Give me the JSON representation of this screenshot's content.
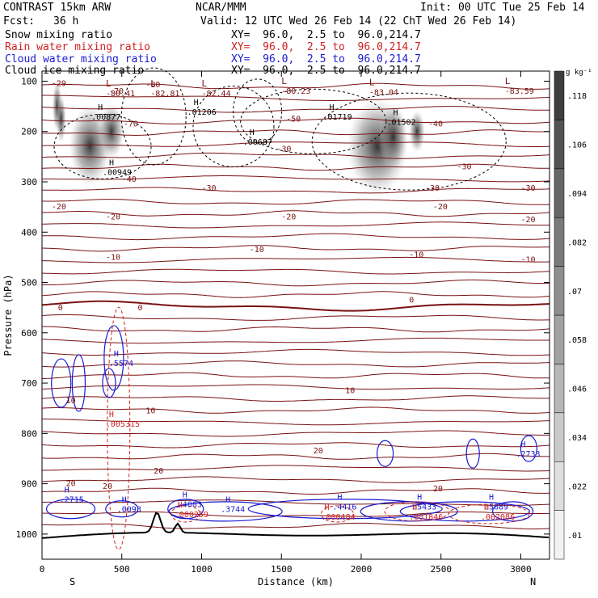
{
  "header": {
    "model": "CONTRAST 15km ARW",
    "center": "NCAR/MMM",
    "init": "Init: 00 UTC Tue 25 Feb 14",
    "fcst_label": "Fcst:",
    "fcst_value": "36 h",
    "valid": "Valid: 12 UTC Wed 26 Feb 14 (22 ChT Wed 26 Feb 14)",
    "fields": [
      {
        "name": "Snow mixing ratio",
        "xy": "",
        "color": "#000000"
      },
      {
        "name": "Rain water mixing ratio",
        "xy": "XY=  96.0,  2.5 to  96.0,214.7",
        "color": "#d22020"
      },
      {
        "name": "Cloud water mixing ratio",
        "xy": "XY=  96.0,  2.5 to  96.0,214.7",
        "color": "#1a1ad0"
      },
      {
        "name": "Cloud ice mixing ratio",
        "xy": "XY=  96.0,  2.5 to  96.0,214.7",
        "color": "#000000"
      }
    ],
    "xy_snow": "XY=  96.0,  2.5 to  96.0,214.7"
  },
  "chart_data": {
    "type": "cross-section",
    "xlabel": "Distance (km)",
    "ylabel": "Pressure (hPa)",
    "xlim": [
      0,
      3180
    ],
    "ylim": [
      1050,
      80
    ],
    "x_ticks": [
      0,
      500,
      1000,
      1500,
      2000,
      2500,
      3000
    ],
    "y_ticks": [
      100,
      200,
      300,
      400,
      500,
      600,
      700,
      800,
      900,
      1000
    ],
    "x_endpoints": {
      "left": "S",
      "right": "N"
    },
    "colorbar": {
      "unit": "g kg⁻¹",
      "ticks": [
        ".01",
        ".022",
        ".034",
        ".046",
        ".058",
        ".07",
        ".082",
        ".094",
        ".106",
        ".118"
      ]
    },
    "temperature_labels": [
      "-29",
      "-80",
      "-70",
      "-60",
      "-50",
      "-40",
      "-30",
      "-20",
      "-10",
      "0",
      "10",
      "20"
    ],
    "low_labels": [
      {
        "x": 400,
        "p": 120,
        "value": "-80.41"
      },
      {
        "x": 680,
        "p": 120,
        "value": "-82.81"
      },
      {
        "x": 1000,
        "p": 120,
        "value": "-82.44"
      },
      {
        "x": 1500,
        "p": 115,
        "value": "-80.23"
      },
      {
        "x": 2050,
        "p": 118,
        "value": "-83.04"
      },
      {
        "x": 2900,
        "p": 115,
        "value": "-83.59"
      }
    ],
    "ice_high_labels": [
      {
        "x": 350,
        "p": 170,
        "value": ".00877"
      },
      {
        "x": 950,
        "p": 160,
        "value": ".01206"
      },
      {
        "x": 1300,
        "p": 220,
        "value": ".00687"
      },
      {
        "x": 1800,
        "p": 170,
        "value": ".01719"
      },
      {
        "x": 2200,
        "p": 180,
        "value": ".01502"
      },
      {
        "x": 420,
        "p": 280,
        "value": ".00949"
      }
    ],
    "cloud_water_labels": [
      {
        "x": 450,
        "p": 660,
        "value": ".5574"
      },
      {
        "x": 140,
        "p": 930,
        "value": ".2715"
      },
      {
        "x": 500,
        "p": 950,
        "value": ".0093"
      },
      {
        "x": 880,
        "p": 940,
        "value": ".4003"
      },
      {
        "x": 1150,
        "p": 950,
        "value": ".3744"
      },
      {
        "x": 1850,
        "p": 945,
        "value": ".4416"
      },
      {
        "x": 2350,
        "p": 945,
        "value": ".5433"
      },
      {
        "x": 2800,
        "p": 945,
        "value": ".5689"
      },
      {
        "x": 3000,
        "p": 840,
        "value": ".2733"
      }
    ],
    "rain_labels": [
      {
        "x": 450,
        "p": 780,
        "value": ".005315"
      },
      {
        "x": 880,
        "p": 960,
        "value": ".000259"
      },
      {
        "x": 1800,
        "p": 965,
        "value": ".000484"
      },
      {
        "x": 2350,
        "p": 965,
        "value": ".001846"
      },
      {
        "x": 2800,
        "p": 965,
        "value": ".002086"
      }
    ],
    "grid": false
  }
}
